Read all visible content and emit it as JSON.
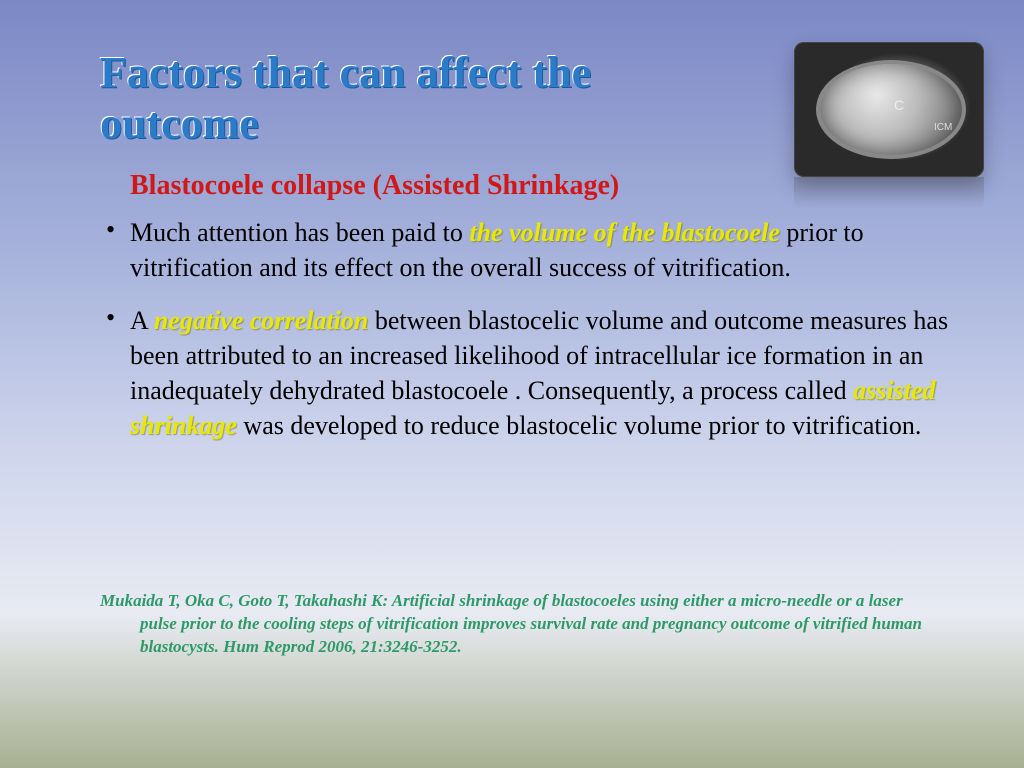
{
  "title": "Factors that can affect the outcome",
  "subtitle": "Blastocoele collapse (Assisted Shrinkage)",
  "bullets": [
    {
      "pre": "Much attention has been paid to ",
      "hl1": "the volume of the blastocoele",
      "post": " prior to vitrification and its effect on the overall success of vitrification."
    },
    {
      "pre": "A ",
      "hl1": "negative correlation",
      "mid": " between blastocelic volume and outcome measures has been attributed to an increased likelihood of intracellular ice formation in an inadequately dehydrated blastocoele . Consequently, a process called ",
      "hl2": "assisted shrinkage",
      "post": " was developed to reduce blastocelic volume prior to vitrification."
    }
  ],
  "citation": "Mukaida T, Oka C, Goto T, Takahashi K: Artificial shrinkage of blastocoeles using either a micro-needle or a laser pulse prior to the cooling steps of vitrification improves survival rate and pregnancy outcome of vitrified human blastocysts. Hum Reprod 2006, 21:3246-3252.",
  "thumb": {
    "label_c": "C",
    "label_icm": "ICM"
  },
  "colors": {
    "title": "#2b7bc9",
    "subtitle": "#d11818",
    "highlight": "#e8e800",
    "citation": "#2e9968"
  }
}
